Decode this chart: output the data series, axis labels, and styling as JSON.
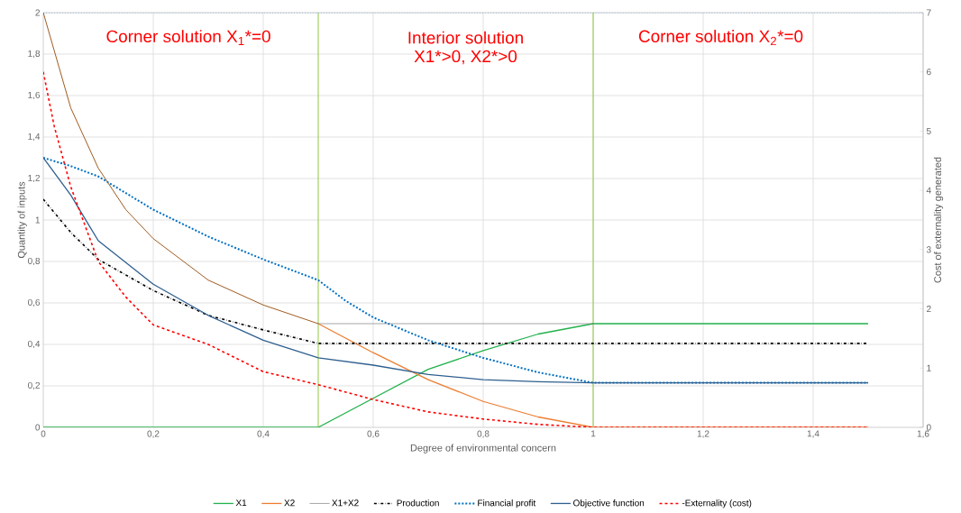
{
  "chart_data": {
    "type": "line",
    "xlabel": "Degree of environmental concern",
    "ylabel": "Quantity of inputs",
    "y2label": "Cost of externality generated",
    "xlim": [
      0,
      1.6
    ],
    "xticks": [
      0,
      {
        "value": 0.2,
        "label": "0,2"
      },
      {
        "value": 0.4,
        "label": "0,4"
      },
      {
        "value": 0.6,
        "label": "0,6"
      },
      {
        "value": 0.8,
        "label": "0,8"
      },
      1,
      {
        "value": 1.2,
        "label": "1,2"
      },
      {
        "value": 1.4,
        "label": "1,4"
      },
      {
        "value": 1.6,
        "label": "1,6"
      }
    ],
    "ylim": [
      0,
      2
    ],
    "yticks": [
      0,
      {
        "value": 0.2,
        "label": "0,2"
      },
      {
        "value": 0.4,
        "label": "0,4"
      },
      {
        "value": 0.6,
        "label": "0,6"
      },
      {
        "value": 0.8,
        "label": "0,8"
      },
      1,
      {
        "value": 1.2,
        "label": "1,2"
      },
      {
        "value": 1.4,
        "label": "1,4"
      },
      {
        "value": 1.6,
        "label": "1,6"
      },
      {
        "value": 1.8,
        "label": "1,8"
      },
      2
    ],
    "y2lim": [
      0,
      7
    ],
    "y2ticks": [
      0,
      1,
      2,
      3,
      4,
      5,
      6,
      7
    ],
    "grid": true,
    "legend": "bottom",
    "annotations": [
      "Corner solution X$_{1}$*=0",
      "Interior solution",
      "X1*>0, X2*>0",
      "Corner solution X$_{2}$*=0"
    ],
    "ref_lines": [
      {
        "axis": "x",
        "value": 0.5,
        "color": "#92c83e"
      },
      {
        "axis": "x",
        "value": 1,
        "color": "#92c83e"
      },
      {
        "axis": "y",
        "value": 2,
        "color": "#5b9bd5",
        "line_style": "dotted"
      }
    ],
    "series": [
      {
        "name": "X1",
        "color": "#22b14c",
        "line_style": "solid",
        "x": [
          0,
          0.5,
          0.6,
          0.7,
          0.8,
          0.9,
          1,
          1.5
        ],
        "values": [
          0,
          0,
          0.14,
          0.28,
          0.37,
          0.45,
          0.5,
          0.5
        ]
      },
      {
        "name": "X2",
        "color": "#ed7d31",
        "line_style": "solid",
        "x": [
          0.5,
          0.6,
          0.7,
          0.8,
          0.9,
          1,
          1.5
        ],
        "values": [
          0.5,
          0.36,
          0.23,
          0.125,
          0.05,
          0,
          0
        ]
      },
      {
        "name": "X1+X2",
        "color": "#7f7f7f",
        "line_style": "solid",
        "x": [
          0.5,
          1
        ],
        "values": [
          0.5,
          0.5
        ]
      },
      {
        "name": "Production",
        "color": "#000000",
        "line_style": "dashdot",
        "x": [
          0,
          0.05,
          0.1,
          0.2,
          0.3,
          0.4,
          0.5,
          1,
          1.5
        ],
        "values": [
          1.1,
          0.94,
          0.81,
          0.66,
          0.54,
          0.47,
          0.405,
          0.405,
          0.405
        ]
      },
      {
        "name": "Financial profit",
        "color": "#0070c0",
        "line_style": "dotted",
        "x": [
          0,
          0.05,
          0.1,
          0.2,
          0.3,
          0.4,
          0.5,
          0.55,
          0.6,
          0.7,
          0.8,
          0.9,
          1,
          1.5
        ],
        "values": [
          1.3,
          1.26,
          1.21,
          1.05,
          0.92,
          0.81,
          0.71,
          0.61,
          0.53,
          0.42,
          0.335,
          0.265,
          0.215,
          0.215
        ]
      },
      {
        "name": "Objective function",
        "color": "#2e5f8f",
        "line_style": "solid",
        "x": [
          0,
          0.05,
          0.1,
          0.2,
          0.3,
          0.4,
          0.5,
          0.6,
          0.7,
          0.8,
          0.9,
          1,
          1.5
        ],
        "values": [
          1.3,
          1.12,
          0.9,
          0.69,
          0.54,
          0.42,
          0.335,
          0.3,
          0.255,
          0.23,
          0.22,
          0.215,
          0.215
        ]
      },
      {
        "name": "-Externality (cost)",
        "color": "#ff0000",
        "line_style": "dashed",
        "axis": "y2",
        "x": [
          0,
          0.02,
          0.05,
          0.1,
          0.15,
          0.2,
          0.3,
          0.4,
          0.5,
          0.6,
          0.7,
          0.8,
          0.9,
          1,
          1.5
        ],
        "values": [
          6.0,
          5.08,
          4.06,
          2.8,
          2.2,
          1.73,
          1.4,
          0.94,
          0.72,
          0.47,
          0.26,
          0.14,
          0.05,
          0,
          0
        ]
      },
      {
        "color": "#9e5a1e",
        "line_style": "solid",
        "x": [
          0,
          0.05,
          0.1,
          0.15,
          0.2,
          0.3,
          0.4,
          0.5
        ],
        "values": [
          2,
          1.54,
          1.25,
          1.05,
          0.91,
          0.71,
          0.59,
          0.5
        ]
      }
    ]
  }
}
